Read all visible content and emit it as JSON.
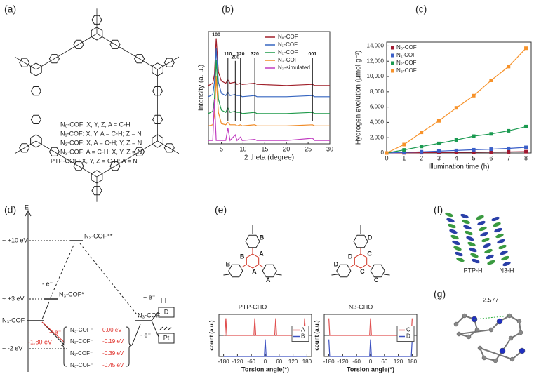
{
  "panel_labels": [
    "(a)",
    "(b)",
    "(c)",
    "(d)",
    "(e)",
    "(f)",
    "(g)"
  ],
  "panel_a": {
    "legend": [
      "N₀-COF: X, Y, Z, A = C-H",
      "N₁-COF: X, Y, A = C-H; Z = N",
      "N₂-COF: X, A = C-H; Y, Z = N",
      "N₃-COF: A = C-H; X, Y, Z = N",
      "PTP-COF:  X, Y, Z = C-H; A = N"
    ]
  },
  "chart_data": [
    {
      "type": "line",
      "xlabel": "2 theta (degree)",
      "ylabel": "Intensity (a. u.)",
      "xlim": [
        2,
        30
      ],
      "xticks": [
        5,
        10,
        15,
        20,
        25,
        30
      ],
      "ylim": [
        0,
        100
      ],
      "legend": "upper right",
      "series": [
        {
          "name": "N₀-COF",
          "color": "#a0202a",
          "x": [
            2,
            3,
            3.4,
            3.8,
            4.3,
            5,
            6,
            6.5,
            7,
            8.2,
            8.6,
            9.4,
            9.8,
            12.7,
            13.2,
            20,
            26,
            26.5,
            30
          ],
          "values": [
            52,
            54,
            62,
            94,
            64,
            56,
            54,
            57,
            54,
            55,
            53,
            54,
            53,
            54,
            53,
            52,
            53,
            52,
            52
          ]
        },
        {
          "name": "N₁-COF",
          "color": "#3565c0",
          "x": [
            2,
            3,
            3.4,
            3.8,
            4.3,
            5,
            6,
            6.5,
            7,
            8.2,
            8.6,
            9.4,
            9.8,
            12.7,
            13.2,
            20,
            26,
            26.5,
            30
          ],
          "values": [
            42,
            44,
            55,
            85,
            55,
            45,
            43,
            46,
            43,
            44,
            43,
            43,
            42,
            43,
            42,
            42,
            43,
            42,
            42
          ]
        },
        {
          "name": "N₂-COF",
          "color": "#1f9a4a",
          "x": [
            2,
            3,
            3.4,
            3.8,
            4.3,
            5,
            6,
            6.5,
            7,
            8.2,
            8.6,
            9.4,
            9.8,
            12.7,
            13.2,
            20,
            26,
            26.5,
            30
          ],
          "values": [
            27,
            29,
            40,
            75,
            40,
            30,
            28,
            32,
            28,
            29,
            28,
            28,
            27,
            28,
            27,
            27,
            28,
            27,
            27
          ]
        },
        {
          "name": "N₃-COF",
          "color": "#f08a25",
          "x": [
            2,
            3,
            3.4,
            3.8,
            4.3,
            5,
            6,
            6.5,
            7,
            8.2,
            8.6,
            9.4,
            9.8,
            12.7,
            13.2,
            20,
            26,
            26.5,
            30
          ],
          "values": [
            16,
            17,
            25,
            60,
            28,
            18,
            17,
            19,
            17,
            17,
            16,
            17,
            16,
            17,
            16,
            16,
            17,
            16,
            16
          ]
        },
        {
          "name": "N₃-simulated",
          "color": "#c03cc0",
          "x": [
            2,
            3,
            3.4,
            3.8,
            4.3,
            5,
            6,
            6.5,
            7,
            8.2,
            8.6,
            9.4,
            9.8,
            12.7,
            13.2,
            20,
            26,
            26.5,
            30
          ],
          "values": [
            3,
            3,
            40,
            3,
            3,
            3,
            3,
            14,
            3,
            8,
            3,
            6,
            3,
            4,
            3,
            3,
            5,
            3,
            3
          ]
        }
      ],
      "annotations": [
        {
          "text": "100",
          "x": 3.8,
          "y": 97
        },
        {
          "text": "110",
          "x": 6.5,
          "y": 80
        },
        {
          "text": "200",
          "x": 8.2,
          "y": 77
        },
        {
          "text": "120",
          "x": 9.4,
          "y": 80
        },
        {
          "text": "320",
          "x": 12.7,
          "y": 80
        },
        {
          "text": "001",
          "x": 26,
          "y": 80
        }
      ]
    },
    {
      "type": "line",
      "xlabel": "Illumination time (h)",
      "ylabel": "Hydrogen evolution (μmol g⁻¹)",
      "x": [
        0,
        1,
        2,
        3,
        4,
        5,
        6,
        7,
        8
      ],
      "xlim": [
        0,
        8.3
      ],
      "xticks": [
        0,
        1,
        2,
        3,
        4,
        5,
        6,
        7,
        8
      ],
      "ylim": [
        0,
        14500
      ],
      "yticks": [
        0,
        {
          "value": 2000,
          "label": "2,000"
        },
        {
          "value": 4000,
          "label": "4,000"
        },
        {
          "value": 6000,
          "label": "6,000"
        },
        {
          "value": 8000,
          "label": "8,000"
        },
        {
          "value": 10000,
          "label": "10,000"
        },
        {
          "value": 12000,
          "label": "12,000"
        },
        {
          "value": 14000,
          "label": "14,000"
        }
      ],
      "legend": "upper left",
      "markers": true,
      "series": [
        {
          "name": "N₀-COF",
          "color": "#a01830",
          "values": [
            0,
            20,
            40,
            60,
            80,
            100,
            120,
            140,
            170
          ]
        },
        {
          "name": "N₁-COF",
          "color": "#3a5fc8",
          "values": [
            0,
            80,
            160,
            250,
            330,
            420,
            500,
            600,
            730
          ]
        },
        {
          "name": "N₂-COF",
          "color": "#1a9a50",
          "values": [
            0,
            400,
            850,
            1250,
            1700,
            2200,
            2500,
            2900,
            3450
          ]
        },
        {
          "name": "N₃-COF",
          "color": "#f7922a",
          "values": [
            0,
            1100,
            2700,
            4200,
            5900,
            7500,
            9500,
            11300,
            13700
          ]
        }
      ]
    },
    {
      "type": "line",
      "xlabel": "Torsion angle(°)",
      "ylabel": "count (a.u.)",
      "subplots": true,
      "xlim": [
        -200,
        200
      ],
      "xticks": [
        -180,
        -120,
        -60,
        0,
        60,
        120,
        180
      ],
      "ylim": [
        0,
        100
      ],
      "legend": "right",
      "series": [
        {
          "name": "A",
          "color": "#e05050",
          "x": [
            -180,
            -174,
            -170,
            -166,
            -49,
            -45,
            -41,
            41,
            45,
            49,
            166,
            170,
            174,
            180
          ],
          "values": [
            0,
            0,
            90,
            0,
            0,
            90,
            0,
            0,
            90,
            0,
            0,
            90,
            0,
            0
          ]
        },
        {
          "name": "B",
          "color": "#3a4fc0",
          "x": [
            -180,
            -4,
            0,
            4,
            180
          ],
          "values": [
            0,
            0,
            90,
            0,
            0
          ]
        }
      ]
    },
    {
      "type": "line",
      "xlabel": "Torsion angle(°)",
      "ylabel": "count (a.u.)",
      "subplots": true,
      "xlim": [
        -200,
        200
      ],
      "xticks": [
        -180,
        -120,
        -60,
        0,
        60,
        120,
        180
      ],
      "ylim": [
        0,
        100
      ],
      "legend": "right",
      "series": [
        {
          "name": "C",
          "color": "#e05050",
          "x": [
            -180,
            -176,
            -4,
            0,
            4,
            176,
            180
          ],
          "values": [
            90,
            0,
            0,
            90,
            0,
            0,
            90
          ]
        },
        {
          "name": "D",
          "color": "#3a4fc0",
          "x": [
            -180,
            -176,
            -4,
            0,
            4,
            176,
            180
          ],
          "values": [
            90,
            0,
            0,
            90,
            0,
            0,
            90
          ]
        }
      ]
    }
  ],
  "panel_d": {
    "axis_label": "E",
    "levels": [
      "~ +10 eV",
      "~ +3 eV",
      "~ -2 eV"
    ],
    "ground": "N₃-COF",
    "top_state": "N₃-COF⁺*",
    "mid_state": "N₃-COF*",
    "electron_steps": [
      "- e⁻",
      "+ e⁻",
      "+ e⁻",
      "- e⁻"
    ],
    "shift": "-1.80 eV",
    "states": [
      {
        "name": "N₃-COF⁻",
        "energy": "0.00 eV"
      },
      {
        "name": "N₂-COF⁻",
        "energy": "-0.19 eV"
      },
      {
        "name": "N₁-COF⁻",
        "energy": "-0.39 eV"
      },
      {
        "name": "N₀-COF⁻",
        "energy": "-0.45 eV"
      }
    ],
    "product": "N₃-COF",
    "donor": "D",
    "catalyst": "Pt"
  },
  "panel_e": {
    "molecules": [
      {
        "name": "PTP-CHO",
        "letters": [
          "B",
          "A",
          "A",
          "A",
          "B",
          "B"
        ]
      },
      {
        "name": "N3-CHO",
        "letters": [
          "D",
          "C",
          "C",
          "C",
          "D",
          "D"
        ]
      }
    ]
  },
  "panel_f": {
    "labels": [
      "PTP-H",
      "N3-H"
    ]
  },
  "panel_g": {
    "distance": "2.577"
  }
}
